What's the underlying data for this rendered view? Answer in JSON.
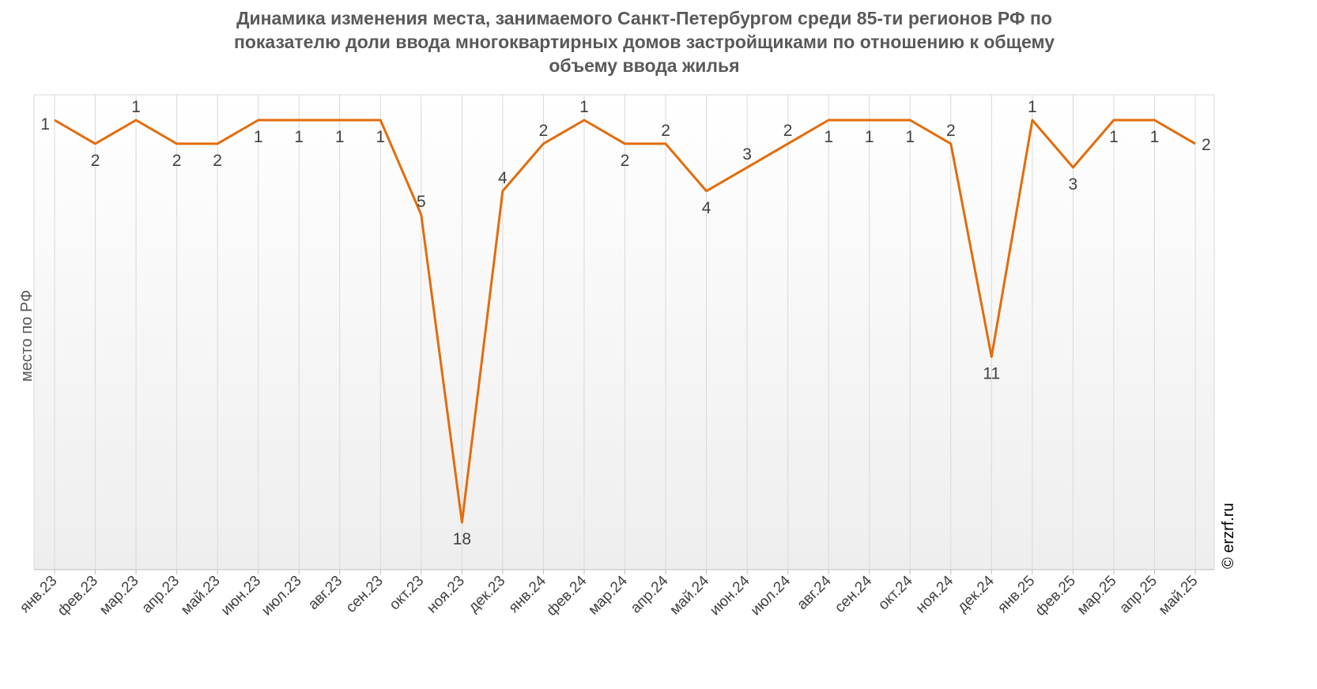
{
  "chart_data": {
    "type": "line",
    "title": "Динамика изменения места, занимаемого Санкт-Петербургом среди 85-ти регионов РФ по\nпоказателю доли ввода многоквартирных домов застройщиками по отношению к общему\nобъему ввода жилья",
    "ylabel": "место по РФ",
    "xlabel": "",
    "y_inverted": true,
    "ylim": [
      1,
      20
    ],
    "grid": "vertical",
    "legend": "none",
    "line_color": "#E36C0A",
    "categories": [
      "янв.23",
      "фев.23",
      "мар.23",
      "апр.23",
      "май.23",
      "июн.23",
      "июл.23",
      "авг.23",
      "сен.23",
      "окт.23",
      "ноя.23",
      "дек.23",
      "янв.24",
      "фев.24",
      "мар.24",
      "апр.24",
      "май.24",
      "июн.24",
      "июл.24",
      "авг.24",
      "сен.24",
      "окт.24",
      "ноя.24",
      "дек.24",
      "янв.25",
      "фев.25",
      "мар.25",
      "апр.25",
      "май.25"
    ],
    "values": [
      1,
      2,
      1,
      2,
      2,
      1,
      1,
      1,
      1,
      5,
      18,
      4,
      2,
      1,
      2,
      2,
      4,
      3,
      2,
      1,
      1,
      1,
      2,
      11,
      1,
      3,
      1,
      1,
      2
    ]
  },
  "footer": {
    "copyright": "© erzrf.ru"
  }
}
